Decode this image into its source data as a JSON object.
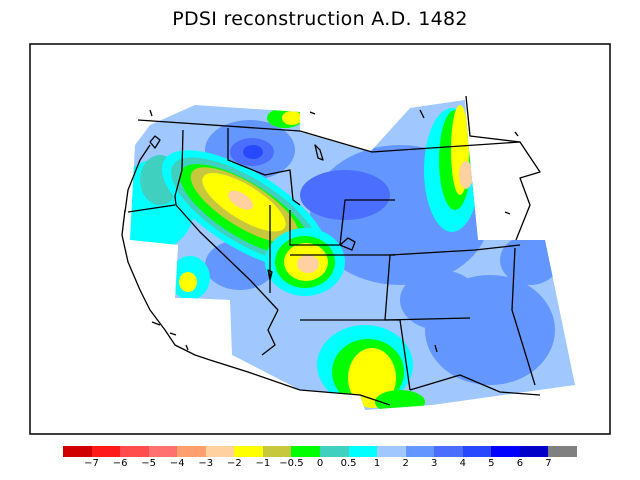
{
  "title": "PDSI reconstruction A.D. 1482",
  "legend": {
    "colors": [
      "#d10000",
      "#ff1a1a",
      "#ff4d4d",
      "#ff7070",
      "#ff9f70",
      "#ffd0a0",
      "#ffff00",
      "#c8c83c",
      "#00ff00",
      "#40d0c0",
      "#00ffff",
      "#a0c8ff",
      "#6496ff",
      "#4b6eff",
      "#2848ff",
      "#0000ff",
      "#0000c8",
      "#808080"
    ],
    "tick_labels": [
      "−7",
      "−6",
      "−5",
      "−4",
      "−3",
      "−2",
      "−1",
      "−0.5",
      "0",
      "0.5",
      "1",
      "2",
      "3",
      "4",
      "5",
      "6",
      "7"
    ]
  },
  "colors": {
    "dry_strong": "#ffd0a0",
    "dry": "#ffff00",
    "dry_mild": "#c8c83c",
    "near_normal": "#00ff00",
    "teal": "#40d0c0",
    "cyan": "#00ffff",
    "wet_light": "#a0c8ff",
    "wet": "#6496ff",
    "wet_medium": "#4b6eff",
    "wet_strong": "#2848ff"
  }
}
